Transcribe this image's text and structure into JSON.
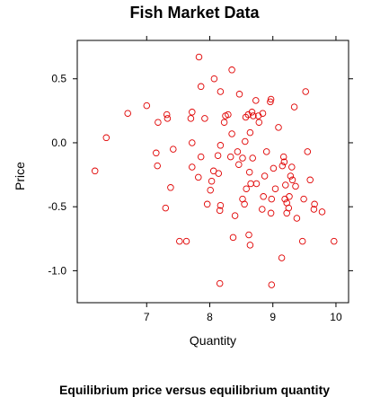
{
  "chart_data": {
    "type": "scatter",
    "title": "Fish Market Data",
    "caption": "Equilibrium price versus equilibrium quantity",
    "xlabel": "Quantity",
    "ylabel": "Price",
    "xlim": [
      5.9,
      10.2
    ],
    "ylim": [
      -1.25,
      0.8
    ],
    "xticks": [
      7,
      8,
      9,
      10
    ],
    "yticks": [
      0.5,
      0.0,
      -0.5,
      -1.0
    ],
    "ytick_labels": [
      "0.5",
      "0.0",
      "-0.5",
      "-1.0"
    ],
    "grid": false,
    "marker_color": "#e00000",
    "x": [
      6.18,
      6.36,
      6.7,
      7.0,
      7.15,
      7.17,
      7.18,
      7.3,
      7.32,
      7.33,
      7.38,
      7.42,
      7.52,
      7.63,
      7.7,
      7.72,
      7.72,
      7.72,
      7.82,
      7.83,
      7.86,
      7.86,
      7.92,
      7.96,
      8.01,
      8.03,
      8.06,
      8.07,
      8.13,
      8.14,
      8.16,
      8.16,
      8.17,
      8.17,
      8.17,
      8.23,
      8.25,
      8.29,
      8.33,
      8.35,
      8.35,
      8.37,
      8.4,
      8.44,
      8.46,
      8.47,
      8.52,
      8.52,
      8.55,
      8.56,
      8.57,
      8.58,
      8.61,
      8.62,
      8.63,
      8.64,
      8.64,
      8.65,
      8.67,
      8.68,
      8.69,
      8.73,
      8.74,
      8.77,
      8.78,
      8.83,
      8.84,
      8.85,
      8.87,
      8.9,
      8.96,
      8.97,
      8.97,
      8.98,
      8.98,
      9.01,
      9.04,
      9.09,
      9.14,
      9.15,
      9.17,
      9.18,
      9.19,
      9.2,
      9.22,
      9.22,
      9.25,
      9.26,
      9.28,
      9.3,
      9.31,
      9.34,
      9.36,
      9.38,
      9.47,
      9.49,
      9.52,
      9.55,
      9.59,
      9.65,
      9.66,
      9.78,
      9.97
    ],
    "y": [
      -0.22,
      0.04,
      0.23,
      0.29,
      -0.08,
      -0.18,
      0.16,
      -0.51,
      0.22,
      0.19,
      -0.35,
      -0.05,
      -0.77,
      -0.77,
      0.19,
      0.24,
      -0.19,
      0.0,
      -0.27,
      0.67,
      -0.11,
      0.44,
      0.19,
      -0.48,
      -0.37,
      -0.3,
      -0.22,
      0.5,
      -0.1,
      -0.24,
      -0.53,
      -1.1,
      -0.49,
      0.4,
      -0.02,
      0.16,
      0.21,
      0.22,
      -0.11,
      0.57,
      0.07,
      -0.74,
      -0.57,
      -0.07,
      -0.17,
      0.38,
      -0.44,
      -0.12,
      -0.48,
      0.01,
      0.2,
      -0.36,
      0.22,
      -0.72,
      -0.23,
      0.08,
      -0.8,
      -0.32,
      0.24,
      -0.12,
      0.21,
      0.33,
      -0.32,
      0.21,
      0.16,
      -0.52,
      0.23,
      -0.42,
      -0.26,
      -0.07,
      0.32,
      0.34,
      -0.55,
      -0.44,
      -1.11,
      -0.2,
      -0.36,
      0.12,
      -0.9,
      -0.18,
      -0.11,
      -0.15,
      -0.44,
      -0.33,
      -0.47,
      -0.55,
      -0.51,
      -0.42,
      -0.26,
      -0.19,
      -0.29,
      0.28,
      -0.34,
      -0.59,
      -0.77,
      -0.44,
      0.4,
      -0.07,
      -0.29,
      -0.52,
      -0.48,
      -0.54,
      -0.77
    ]
  }
}
